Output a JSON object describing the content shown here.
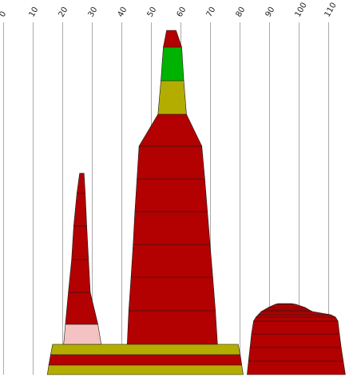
{
  "chart_data": {
    "type": "area",
    "title": "",
    "xlabel": "",
    "ylabel": "",
    "x_ticks": [
      0,
      10,
      20,
      30,
      40,
      50,
      60,
      70,
      80,
      90,
      100,
      110
    ],
    "x_range": [
      -1,
      121
    ],
    "grid": true,
    "colors": {
      "dark_red": "#b30000",
      "olive": "#b3ad00",
      "green": "#00b300",
      "pink": "#f4c2c2",
      "gridline": "#aaaaaa"
    },
    "shapes": [
      {
        "name": "",
        "bands": [
          {
            "color": "olive",
            "bottom": [
              15,
              81.2
            ],
            "top": [
              15.5,
              80.7
            ]
          },
          {
            "color": "dark_red",
            "bottom": [
              15.5,
              80.7
            ],
            "top": [
              16.1,
              80.2
            ]
          },
          {
            "color": "olive",
            "bottom": [
              16.1,
              80.2
            ],
            "top": [
              16.8,
              79.5
            ]
          }
        ]
      },
      {
        "name": "",
        "bands": [
          {
            "color": "pink",
            "bottom": [
              20.5,
              33.2
            ],
            "top": [
              21.1,
              32.1
            ]
          },
          {
            "color": "dark_red",
            "bottom": [
              21.1,
              32.1
            ],
            "top": [
              22.1,
              29.5
            ]
          },
          {
            "color": "dark_red",
            "bottom": [
              22.1,
              29.5
            ],
            "top": [
              23.2,
              28.9
            ]
          },
          {
            "color": "dark_red",
            "bottom": [
              23.2,
              28.9
            ],
            "top": [
              23.9,
              28.3
            ]
          },
          {
            "color": "dark_red",
            "bottom": [
              23.9,
              28.3
            ],
            "top": [
              25.0,
              27.8
            ]
          },
          {
            "color": "dark_red",
            "bottom": [
              25.0,
              27.8
            ],
            "top": [
              25.9,
              27.4
            ]
          },
          {
            "color": "dark_red",
            "bottom": [
              25.9,
              27.4
            ],
            "top": [
              26.1,
              27.2
            ]
          }
        ]
      },
      {
        "name": "",
        "bands": [
          {
            "color": "dark_red",
            "bottom": [
              42.0,
              72.5
            ],
            "top": [
              42.5,
              71.8
            ]
          },
          {
            "color": "dark_red",
            "bottom": [
              42.5,
              71.8
            ],
            "top": [
              43.3,
              70.9
            ]
          },
          {
            "color": "dark_red",
            "bottom": [
              43.3,
              70.9
            ],
            "top": [
              44.0,
              70.0
            ]
          },
          {
            "color": "dark_red",
            "bottom": [
              44.0,
              70.0
            ],
            "top": [
              44.6,
              69.1
            ]
          },
          {
            "color": "dark_red",
            "bottom": [
              44.6,
              69.1
            ],
            "top": [
              45.3,
              68.2
            ]
          },
          {
            "color": "dark_red",
            "bottom": [
              45.3,
              68.2
            ],
            "top": [
              46.0,
              67.2
            ]
          },
          {
            "color": "dark_red",
            "bottom": [
              46.0,
              67.2
            ],
            "top": [
              52.4,
              62.0
            ]
          },
          {
            "color": "olive",
            "bottom": [
              52.4,
              62.0
            ],
            "top": [
              53.4,
              61.1
            ]
          },
          {
            "color": "green",
            "bottom": [
              53.4,
              61.1
            ],
            "top": [
              54.2,
              60.4
            ]
          },
          {
            "color": "dark_red",
            "bottom": [
              54.2,
              60.4
            ],
            "top": [
              55.3,
              58.5
            ]
          }
        ]
      },
      {
        "name": "",
        "bands": [
          {
            "color": "dark_red",
            "bottom": [
              82.5,
              115.7
            ],
            "top": [
              83.0,
              115.0
            ]
          },
          {
            "color": "dark_red",
            "bottom": [
              83.0,
              115.0
            ],
            "top": [
              83.5,
              114.3
            ]
          },
          {
            "color": "dark_red",
            "bottom": [
              83.5,
              114.3
            ],
            "top": [
              84.0,
              113.7
            ]
          },
          {
            "color": "dark_red",
            "bottom": [
              84.0,
              113.7
            ],
            "top": [
              84.7,
              113.2
            ]
          },
          {
            "color": "dark_red",
            "bottom": [
              84.7,
              113.2
            ],
            "top": [
              85.5,
              112.4
            ]
          },
          {
            "color": "dark_red",
            "bottom": [
              85.5,
              112.4
            ],
            "top": [
              86.3,
              110.8
            ]
          },
          {
            "color": "dark_red",
            "bottom": [
              86.3,
              110.8
            ],
            "top": [
              87.3,
              104.6
            ]
          },
          {
            "color": "dark_red",
            "bottom": [
              87.3,
              104.6
            ],
            "top": [
              88.3,
              103.5
            ]
          },
          {
            "color": "dark_red",
            "bottom": [
              88.3,
              103.5
            ],
            "top": [
              89.6,
              102.2
            ]
          },
          {
            "color": "dark_red",
            "bottom": [
              89.6,
              102.2
            ],
            "top": [
              92.0,
              99.0
            ]
          },
          {
            "color": "dark_red",
            "bottom": [
              92.0,
              99.0
            ],
            "top": [
              93.0,
              97.5
            ]
          }
        ]
      }
    ]
  }
}
